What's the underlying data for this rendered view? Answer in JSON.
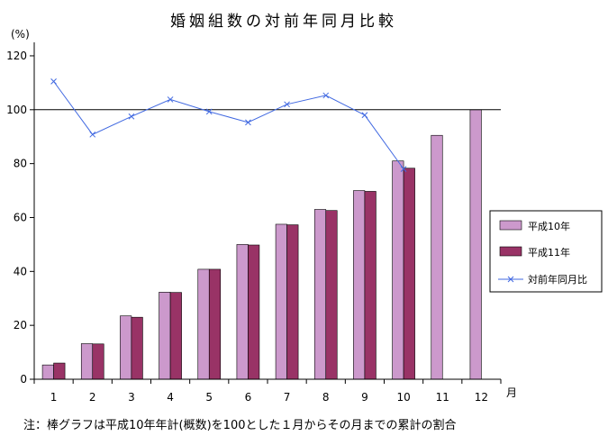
{
  "chart_data": {
    "type": "bar",
    "title": "婚姻組数の対前年同月比較",
    "ylabel": "(%)",
    "xlabel": "月",
    "ylim": [
      0,
      125
    ],
    "yticks": [
      "0",
      "20",
      "40",
      "60",
      "80",
      "100",
      "120"
    ],
    "categories": [
      "1",
      "2",
      "3",
      "4",
      "5",
      "6",
      "7",
      "8",
      "9",
      "10",
      "11",
      "12"
    ],
    "series": [
      {
        "name": "平成10年",
        "type": "bar",
        "color": "#CC99CC",
        "values": [
          5.3,
          13.2,
          23.5,
          32.3,
          40.8,
          50.0,
          57.5,
          63.0,
          70.0,
          81.0,
          90.5,
          100.0
        ]
      },
      {
        "name": "平成11年",
        "type": "bar",
        "color": "#993366",
        "values": [
          6.0,
          13.1,
          23.0,
          32.2,
          40.8,
          49.8,
          57.3,
          62.6,
          69.7,
          78.3,
          null,
          null
        ]
      },
      {
        "name": "対前年同月比",
        "type": "line",
        "color": "#4169E1",
        "marker": "x",
        "values": [
          110.5,
          90.8,
          97.5,
          103.8,
          99.3,
          95.3,
          102.0,
          105.3,
          98.0,
          78.0,
          null,
          null
        ]
      }
    ],
    "reference_line": 100,
    "legend_position": "right",
    "note": "注：棒グラフは平成10年年計(概数)を100とした１月からその月までの累計の割合"
  }
}
